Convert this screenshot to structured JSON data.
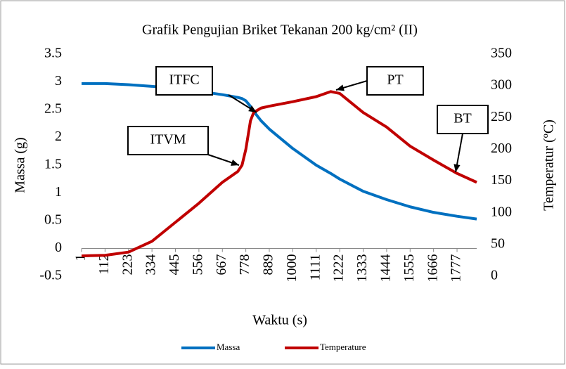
{
  "chart_data": {
    "type": "line",
    "title": "Grafik Pengujian Briket Tekanan 200 kg/cm² (II)",
    "x_label": "Waktu (s)",
    "y_label": "Massa (g)",
    "y2_label": "Temperatur (ºC)",
    "x": [
      1,
      112,
      223,
      334,
      445,
      556,
      667,
      740,
      760,
      778,
      800,
      815,
      850,
      889,
      1000,
      1111,
      1180,
      1222,
      1333,
      1444,
      1555,
      1666,
      1777,
      1870
    ],
    "xlim": [
      1,
      1870
    ],
    "xticks": [
      1,
      112,
      223,
      334,
      445,
      556,
      667,
      778,
      889,
      1000,
      1111,
      1222,
      1333,
      1444,
      1555,
      1666,
      1777
    ],
    "ylim": [
      -0.5,
      3.5
    ],
    "yticks": [
      -0.5,
      0,
      0.5,
      1,
      1.5,
      2,
      2.5,
      3,
      3.5
    ],
    "y2lim": [
      0,
      350
    ],
    "y2ticks": [
      0,
      50,
      100,
      150,
      200,
      250,
      300,
      350
    ],
    "series": [
      {
        "name": "Massa",
        "color": "#0070c0",
        "values": [
          2.97,
          2.97,
          2.95,
          2.92,
          2.88,
          2.83,
          2.77,
          2.72,
          2.7,
          2.66,
          2.56,
          2.47,
          2.3,
          2.15,
          1.8,
          1.5,
          1.35,
          1.25,
          1.03,
          0.88,
          0.75,
          0.65,
          0.58,
          0.53
        ]
      },
      {
        "name": "Temperature",
        "color": "#c00000",
        "axis": "y2",
        "values": [
          32,
          33,
          38,
          55,
          85,
          115,
          148,
          165,
          175,
          200,
          245,
          258,
          265,
          268,
          275,
          283,
          291,
          288,
          258,
          235,
          205,
          183,
          162,
          148
        ]
      }
    ],
    "annotations": [
      {
        "text": "ITFC"
      },
      {
        "text": "PT"
      },
      {
        "text": "ITVM"
      },
      {
        "text": "BT"
      }
    ],
    "legend": "bottom"
  }
}
